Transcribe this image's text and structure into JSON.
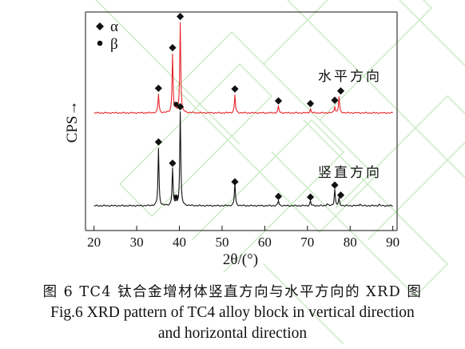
{
  "chart_data": {
    "type": "line",
    "title": "",
    "xlabel": "2θ/(°)",
    "ylabel": "CPS→",
    "xlim": [
      18,
      91
    ],
    "xticks": [
      20,
      30,
      40,
      50,
      60,
      70,
      80,
      90
    ],
    "tick_labels": [
      "20",
      "30",
      "40",
      "50",
      "60",
      "70",
      "80",
      "90"
    ],
    "grid": false,
    "legend": {
      "placement": "top-left",
      "entries": [
        {
          "marker": "diamond",
          "label": "α"
        },
        {
          "marker": "dot",
          "label": "β"
        }
      ]
    },
    "series": [
      {
        "name": "水平方向",
        "color": "#e8262b",
        "baseline": 0,
        "peaks": [
          {
            "x": 35.1,
            "height": 0.28
          },
          {
            "x": 38.4,
            "height": 0.88
          },
          {
            "x": 39.2,
            "height": 0.05
          },
          {
            "x": 40.2,
            "height": 1.36
          },
          {
            "x": 53.0,
            "height": 0.27
          },
          {
            "x": 63.2,
            "height": 0.1
          },
          {
            "x": 70.7,
            "height": 0.06
          },
          {
            "x": 76.4,
            "height": 0.1
          },
          {
            "x": 77.4,
            "height": 0.24
          }
        ],
        "markers": [
          {
            "x": 35.1,
            "type": "diamond",
            "height": 0.37
          },
          {
            "x": 38.4,
            "type": "diamond",
            "height": 0.98
          },
          {
            "x": 39.2,
            "type": "dot",
            "height": 0.13
          },
          {
            "x": 40.2,
            "type": "diamond",
            "height": 1.45
          },
          {
            "x": 53.0,
            "type": "diamond",
            "height": 0.36
          },
          {
            "x": 63.2,
            "type": "diamond",
            "height": 0.18
          },
          {
            "x": 70.7,
            "type": "diamond",
            "height": 0.14
          },
          {
            "x": 76.4,
            "type": "diamond",
            "height": 0.19
          },
          {
            "x": 77.8,
            "type": "diamond",
            "height": 0.33
          }
        ]
      },
      {
        "name": "竖直方向",
        "color": "#111111",
        "baseline": 0,
        "peaks": [
          {
            "x": 35.1,
            "height": 0.86
          },
          {
            "x": 38.4,
            "height": 0.56
          },
          {
            "x": 39.2,
            "height": 0.07
          },
          {
            "x": 40.2,
            "height": 1.41
          },
          {
            "x": 53.0,
            "height": 0.35
          },
          {
            "x": 63.2,
            "height": 0.08
          },
          {
            "x": 70.7,
            "height": 0.07
          },
          {
            "x": 74.6,
            "height": 0.03
          },
          {
            "x": 76.4,
            "height": 0.25
          },
          {
            "x": 77.4,
            "height": 0.11
          },
          {
            "x": 82.3,
            "height": 0.03
          },
          {
            "x": 86.8,
            "height": 0.02
          }
        ],
        "markers": [
          {
            "x": 35.1,
            "type": "diamond",
            "height": 0.96
          },
          {
            "x": 38.4,
            "type": "diamond",
            "height": 0.64
          },
          {
            "x": 39.2,
            "type": "dot",
            "height": 0.13
          },
          {
            "x": 40.2,
            "type": "diamond",
            "height": 1.49
          },
          {
            "x": 53.0,
            "type": "diamond",
            "height": 0.36
          },
          {
            "x": 63.2,
            "type": "diamond",
            "height": 0.14
          },
          {
            "x": 70.7,
            "type": "diamond",
            "height": 0.13
          },
          {
            "x": 76.4,
            "type": "diamond",
            "height": 0.31
          },
          {
            "x": 77.8,
            "type": "diamond",
            "height": 0.16
          }
        ]
      }
    ]
  },
  "caption": {
    "zh": "图 6  TC4 钛合金增材体竖直方向与水平方向的 XRD 图",
    "en_line1": "Fig.6  XRD pattern of TC4 alloy block in vertical direction",
    "en_line2": "and horizontal direction"
  }
}
